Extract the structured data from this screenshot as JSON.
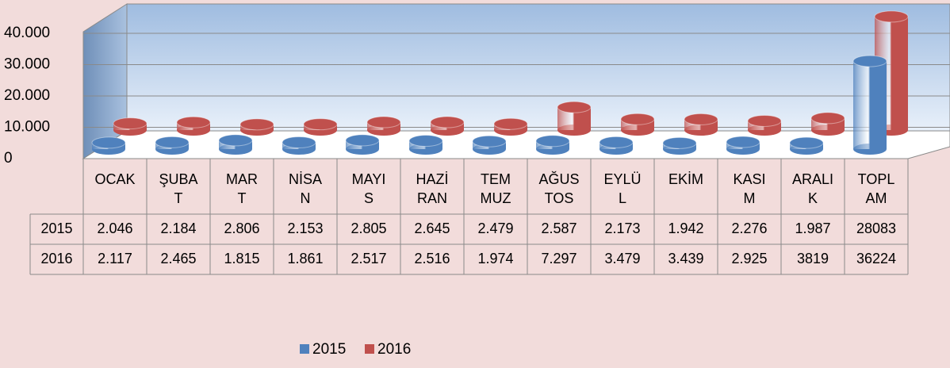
{
  "chart_data": {
    "type": "bar3d-cylinder",
    "categories": [
      "OCAK",
      "ŞUBA\nT",
      "MAR\nT",
      "NİSA\nN",
      "MAYI\nS",
      "HAZİ\nRAN",
      "TEM\nMUZ",
      "AĞUS\nTOS",
      "EYLÜ\nL",
      "EKİM",
      "KASI\nM",
      "ARALI\nK",
      "TOPL\nAM"
    ],
    "series": [
      {
        "name": "2015",
        "color": "#4f81bd",
        "values": [
          2046,
          2184,
          2806,
          2153,
          2805,
          2645,
          2479,
          2587,
          2173,
          1942,
          2276,
          1987,
          28083
        ],
        "value_labels": [
          "2.046",
          "2.184",
          "2.806",
          "2.153",
          "2.805",
          "2.645",
          "2.479",
          "2.587",
          "2.173",
          "1.942",
          "2.276",
          "1.987",
          "28083"
        ]
      },
      {
        "name": "2016",
        "color": "#c0504d",
        "values": [
          2117,
          2465,
          1815,
          1861,
          2517,
          2516,
          1974,
          7297,
          3479,
          3439,
          2925,
          3819,
          36224
        ],
        "value_labels": [
          "2.117",
          "2.465",
          "1.815",
          "1.861",
          "2.517",
          "2.516",
          "1.974",
          "7.297",
          "3.479",
          "3.439",
          "2.925",
          "3819",
          "36224"
        ]
      }
    ],
    "ylim": [
      0,
      45000
    ],
    "yticks": [
      0,
      {
        "value": 10000,
        "label": "10.000"
      },
      {
        "value": 20000,
        "label": "20.000"
      },
      {
        "value": 30000,
        "label": "30.000"
      },
      {
        "value": 40000,
        "label": "40.000"
      }
    ],
    "grid": true,
    "legend": "bottom",
    "data_table": true
  }
}
